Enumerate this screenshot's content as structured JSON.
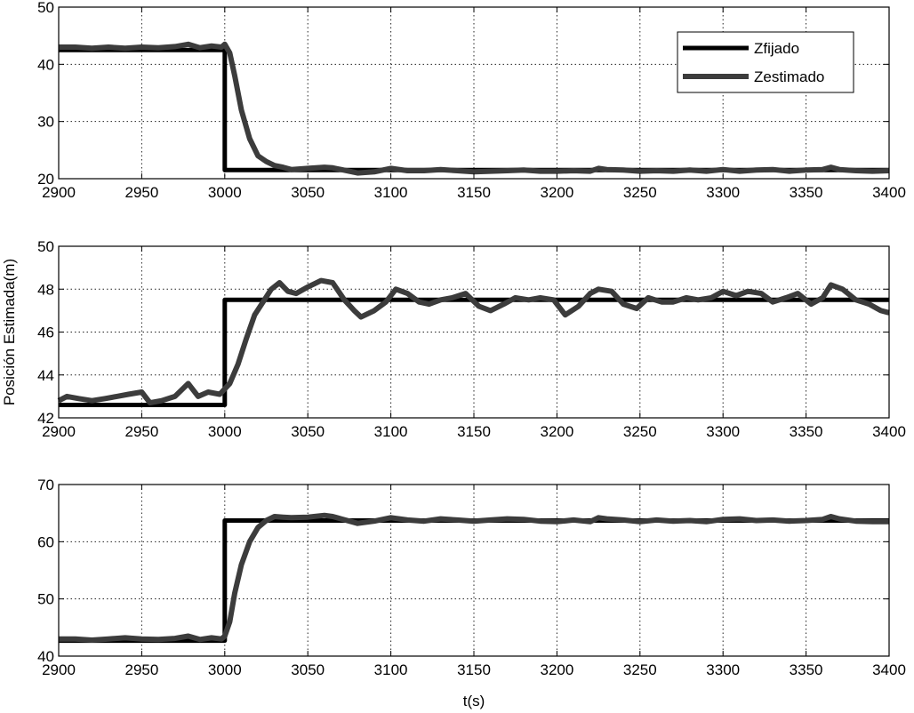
{
  "chart_data": [
    {
      "type": "line",
      "xlim": [
        2900,
        3400
      ],
      "ylim": [
        20,
        50
      ],
      "xticks": [
        2900,
        2950,
        3000,
        3050,
        3100,
        3150,
        3200,
        3250,
        3300,
        3350,
        3400
      ],
      "yticks": [
        20,
        30,
        40,
        50
      ],
      "grid": true,
      "legend": {
        "placement": "top-right",
        "entries": [
          "Zfijado",
          "Zestimado"
        ]
      },
      "series": [
        {
          "name": "Zfijado",
          "color": "#000000",
          "x": [
            2900,
            3000,
            3000,
            3400
          ],
          "y": [
            42.5,
            42.5,
            21.5,
            21.5
          ]
        },
        {
          "name": "Zestimado",
          "color": "#3c3c3c",
          "x": [
            2900,
            2910,
            2920,
            2930,
            2940,
            2950,
            2960,
            2970,
            2978,
            2985,
            2992,
            2998,
            3000,
            3003,
            3006,
            3010,
            3015,
            3020,
            3025,
            3030,
            3035,
            3040,
            3050,
            3060,
            3065,
            3070,
            3080,
            3090,
            3100,
            3110,
            3120,
            3130,
            3140,
            3150,
            3160,
            3170,
            3180,
            3190,
            3200,
            3210,
            3220,
            3225,
            3230,
            3240,
            3250,
            3260,
            3270,
            3280,
            3290,
            3300,
            3310,
            3320,
            3330,
            3340,
            3350,
            3360,
            3365,
            3370,
            3380,
            3390,
            3400
          ],
          "y": [
            43.0,
            43.0,
            42.8,
            43.0,
            42.8,
            43.0,
            42.9,
            43.1,
            43.5,
            42.9,
            43.2,
            43.0,
            43.5,
            42.0,
            38.0,
            32.0,
            27.0,
            24.0,
            23.0,
            22.3,
            22.0,
            21.6,
            21.8,
            22.0,
            21.9,
            21.6,
            21.0,
            21.2,
            21.8,
            21.4,
            21.4,
            21.6,
            21.4,
            21.2,
            21.3,
            21.4,
            21.5,
            21.3,
            21.3,
            21.4,
            21.3,
            21.8,
            21.6,
            21.5,
            21.3,
            21.4,
            21.3,
            21.5,
            21.3,
            21.6,
            21.3,
            21.5,
            21.6,
            21.3,
            21.5,
            21.6,
            22.0,
            21.6,
            21.4,
            21.3,
            21.4
          ]
        }
      ]
    },
    {
      "type": "line",
      "ylabel": "Posición Estimada(m)",
      "xlim": [
        2900,
        3400
      ],
      "ylim": [
        42,
        50
      ],
      "xticks": [
        2900,
        2950,
        3000,
        3050,
        3100,
        3150,
        3200,
        3250,
        3300,
        3350,
        3400
      ],
      "yticks": [
        42,
        44,
        46,
        48,
        50
      ],
      "grid": true,
      "series": [
        {
          "name": "Zfijado",
          "color": "#000000",
          "x": [
            2900,
            3000,
            3000,
            3400
          ],
          "y": [
            42.6,
            42.6,
            47.5,
            47.5
          ]
        },
        {
          "name": "Zestimado",
          "color": "#3c3c3c",
          "x": [
            2900,
            2905,
            2912,
            2920,
            2928,
            2935,
            2942,
            2950,
            2955,
            2962,
            2970,
            2978,
            2984,
            2990,
            2997,
            3003,
            3008,
            3013,
            3018,
            3023,
            3028,
            3033,
            3038,
            3043,
            3050,
            3058,
            3065,
            3072,
            3078,
            3082,
            3090,
            3097,
            3103,
            3110,
            3117,
            3123,
            3130,
            3137,
            3145,
            3153,
            3160,
            3168,
            3175,
            3183,
            3190,
            3198,
            3205,
            3213,
            3220,
            3225,
            3233,
            3240,
            3248,
            3255,
            3263,
            3270,
            3278,
            3285,
            3293,
            3300,
            3308,
            3315,
            3323,
            3330,
            3338,
            3345,
            3353,
            3360,
            3365,
            3372,
            3380,
            3388,
            3395,
            3400
          ],
          "y": [
            42.8,
            43.0,
            42.9,
            42.8,
            42.9,
            43.0,
            43.1,
            43.2,
            42.7,
            42.8,
            43.0,
            43.6,
            43.0,
            43.2,
            43.1,
            43.6,
            44.5,
            45.7,
            46.8,
            47.4,
            48.0,
            48.3,
            47.9,
            47.8,
            48.1,
            48.4,
            48.3,
            47.5,
            47.0,
            46.7,
            47.0,
            47.4,
            48.0,
            47.8,
            47.4,
            47.3,
            47.5,
            47.6,
            47.8,
            47.2,
            47.0,
            47.3,
            47.6,
            47.5,
            47.6,
            47.5,
            46.8,
            47.2,
            47.8,
            48.0,
            47.9,
            47.3,
            47.1,
            47.6,
            47.4,
            47.4,
            47.6,
            47.5,
            47.6,
            47.9,
            47.7,
            47.9,
            47.8,
            47.4,
            47.6,
            47.8,
            47.3,
            47.6,
            48.2,
            48.0,
            47.5,
            47.3,
            47.0,
            46.9
          ]
        }
      ]
    },
    {
      "type": "line",
      "xlabel": "t(s)",
      "xlim": [
        2900,
        3400
      ],
      "ylim": [
        40,
        70
      ],
      "xticks": [
        2900,
        2950,
        3000,
        3050,
        3100,
        3150,
        3200,
        3250,
        3300,
        3350,
        3400
      ],
      "yticks": [
        40,
        50,
        60,
        70
      ],
      "grid": true,
      "series": [
        {
          "name": "Zfijado",
          "color": "#000000",
          "x": [
            2900,
            3000,
            3000,
            3400
          ],
          "y": [
            42.7,
            42.7,
            63.7,
            63.7
          ]
        },
        {
          "name": "Zestimado",
          "color": "#3c3c3c",
          "x": [
            2900,
            2910,
            2920,
            2930,
            2940,
            2950,
            2960,
            2970,
            2978,
            2985,
            2992,
            2998,
            3000,
            3003,
            3006,
            3010,
            3015,
            3020,
            3025,
            3030,
            3035,
            3040,
            3050,
            3060,
            3065,
            3070,
            3080,
            3090,
            3100,
            3110,
            3120,
            3130,
            3140,
            3150,
            3160,
            3170,
            3180,
            3190,
            3200,
            3210,
            3220,
            3225,
            3230,
            3240,
            3250,
            3260,
            3270,
            3280,
            3290,
            3300,
            3310,
            3320,
            3330,
            3340,
            3350,
            3360,
            3365,
            3370,
            3380,
            3390,
            3400
          ],
          "y": [
            43.0,
            43.0,
            42.8,
            43.0,
            43.2,
            43.0,
            42.9,
            43.1,
            43.5,
            42.9,
            43.2,
            43.0,
            43.5,
            46.0,
            51.0,
            56.0,
            60.0,
            62.5,
            63.7,
            64.4,
            64.3,
            64.2,
            64.3,
            64.6,
            64.4,
            64.0,
            63.2,
            63.6,
            64.2,
            63.8,
            63.6,
            64.0,
            63.8,
            63.6,
            63.8,
            64.0,
            63.9,
            63.6,
            63.5,
            63.8,
            63.5,
            64.2,
            64.0,
            63.8,
            63.5,
            63.8,
            63.6,
            63.7,
            63.5,
            63.9,
            64.0,
            63.7,
            63.8,
            63.6,
            63.7,
            63.9,
            64.4,
            64.0,
            63.6,
            63.5,
            63.5
          ]
        }
      ]
    }
  ]
}
